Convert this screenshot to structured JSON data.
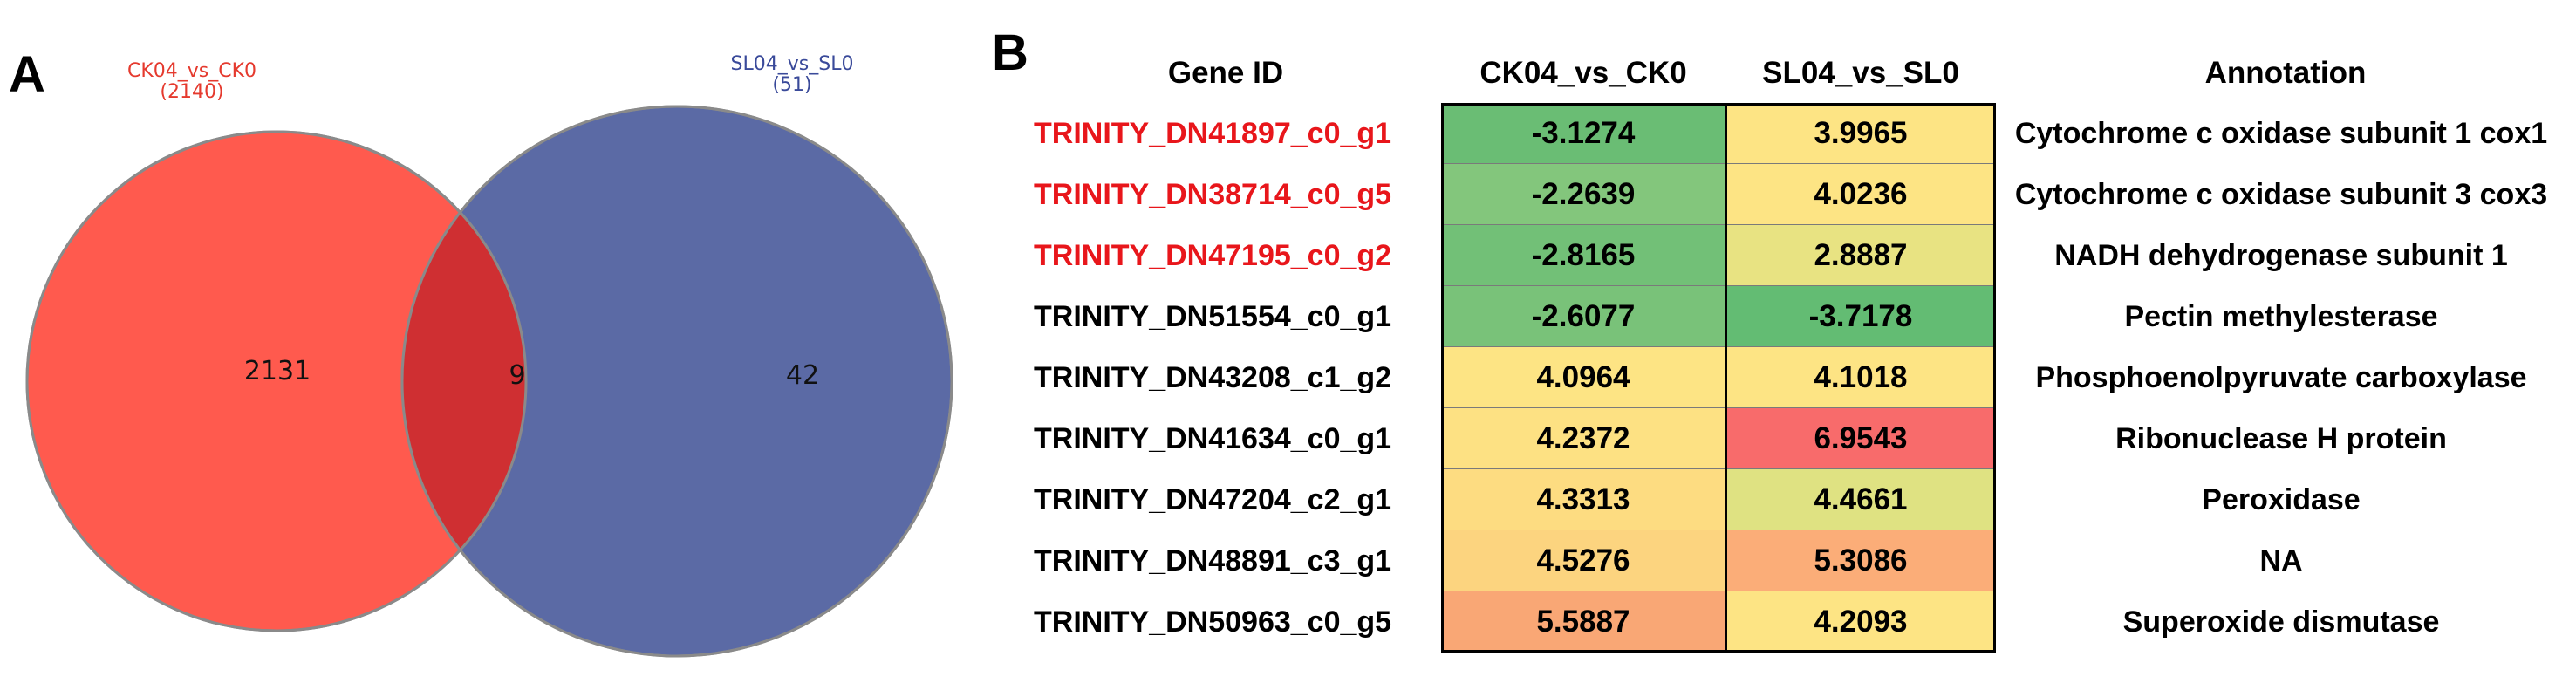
{
  "panel_a": {
    "letter": "A"
  },
  "panel_b": {
    "letter": "B"
  },
  "chart_data": [
    {
      "type": "venn",
      "sets": [
        {
          "name": "CK04_vs_CK0",
          "total": "(2140)",
          "color": "#ff5a4e"
        },
        {
          "name": "SL04_vs_SL0",
          "total": "(51)",
          "color": "#5b6aa5"
        }
      ],
      "intersection_color": "#cf2f32",
      "regions": {
        "left_only": "2131",
        "intersection": "9",
        "right_only": "42"
      }
    },
    {
      "type": "table",
      "headers": {
        "gene": "Gene ID",
        "ck": "CK04_vs_CK0",
        "sl": "SL04_vs_SL0",
        "annotation": "Annotation"
      },
      "rows": [
        {
          "gene": "TRINITY_DN41897_c0_g1",
          "highlight": true,
          "ck": "-3.1274",
          "sl": "3.9965",
          "annotation": "Cytochrome c oxidase subunit 1 cox1",
          "ck_color": "#6abd74",
          "sl_color": "#fde484"
        },
        {
          "gene": "TRINITY_DN38714_c0_g5",
          "highlight": true,
          "ck": "-2.2639",
          "sl": "4.0236",
          "annotation": "Cytochrome c oxidase subunit 3 cox3",
          "ck_color": "#83c67c",
          "sl_color": "#fde484"
        },
        {
          "gene": "TRINITY_DN47195_c0_g2",
          "highlight": true,
          "ck": "-2.8165",
          "sl": "2.8887",
          "annotation": "NADH dehydrogenase subunit 1",
          "ck_color": "#72c077",
          "sl_color": "#e8e382"
        },
        {
          "gene": "TRINITY_DN51554_c0_g1",
          "highlight": false,
          "ck": "-2.6077",
          "sl": "-3.7178",
          "annotation": "Pectin methylesterase",
          "ck_color": "#79c279",
          "sl_color": "#63bc73"
        },
        {
          "gene": "TRINITY_DN43208_c1_g2",
          "highlight": false,
          "ck": "4.0964",
          "sl": "4.1018",
          "annotation": "Phosphoenolpyruvate carboxylase",
          "ck_color": "#fde484",
          "sl_color": "#fde484"
        },
        {
          "gene": "TRINITY_DN41634_c0_g1",
          "highlight": false,
          "ck": "4.2372",
          "sl": "6.9543",
          "annotation": "Ribonuclease H protein",
          "ck_color": "#fde183",
          "sl_color": "#f86b6b"
        },
        {
          "gene": "TRINITY_DN47204_c2_g1",
          "highlight": false,
          "ck": "4.3313",
          "sl": "4.4661",
          "annotation": "Peroxidase",
          "ck_color": "#fddc81",
          "sl_color": "#dfe282"
        },
        {
          "gene": "TRINITY_DN48891_c3_g1",
          "highlight": false,
          "ck": "4.5276",
          "sl": "5.3086",
          "annotation": "NA",
          "ck_color": "#fcd47f",
          "sl_color": "#fbad78"
        },
        {
          "gene": "TRINITY_DN50963_c0_g5",
          "highlight": false,
          "ck": "5.5887",
          "sl": "4.2093",
          "annotation": "Superoxide dismutase",
          "ck_color": "#f9a775",
          "sl_color": "#fde484"
        }
      ]
    }
  ]
}
